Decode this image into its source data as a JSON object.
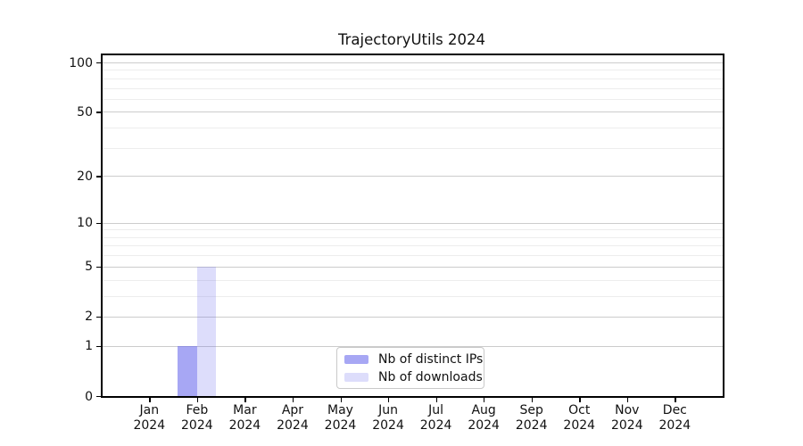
{
  "title": "TrajectoryUtils 2024",
  "chart_data": {
    "type": "bar",
    "title": "TrajectoryUtils 2024",
    "year": "2024",
    "months": [
      "Jan",
      "Feb",
      "Mar",
      "Apr",
      "May",
      "Jun",
      "Jul",
      "Aug",
      "Sep",
      "Oct",
      "Nov",
      "Dec"
    ],
    "categories": [
      "Jan 2024",
      "Feb 2024",
      "Mar 2024",
      "Apr 2024",
      "May 2024",
      "Jun 2024",
      "Jul 2024",
      "Aug 2024",
      "Sep 2024",
      "Oct 2024",
      "Nov 2024",
      "Dec 2024"
    ],
    "series": [
      {
        "name": "Nb of distinct IPs",
        "color": "rgba(100,100,235,0.57)",
        "values": [
          0,
          1,
          0,
          0,
          0,
          0,
          0,
          0,
          0,
          0,
          0,
          0
        ]
      },
      {
        "name": "Nb of downloads",
        "color": "rgba(100,100,235,0.22)",
        "values": [
          0,
          5,
          0,
          0,
          0,
          0,
          0,
          0,
          0,
          0,
          0,
          0
        ]
      }
    ],
    "y_scale": "log1p",
    "y_major_ticks": [
      0,
      1,
      2,
      5,
      10,
      20,
      50,
      100
    ],
    "y_minor_ticks": [
      3,
      4,
      6,
      7,
      8,
      9,
      30,
      40,
      60,
      70,
      80,
      90
    ],
    "ylim": [
      0,
      115
    ],
    "xlabel": "",
    "ylabel": "",
    "grid": true,
    "legend_position": "lower center"
  },
  "colors": {
    "axis": "#000000",
    "text": "#111111",
    "grid_major": "#cccccc",
    "grid_minor": "#ededed",
    "legend_border": "#c9c9c9",
    "background": "#ffffff"
  }
}
